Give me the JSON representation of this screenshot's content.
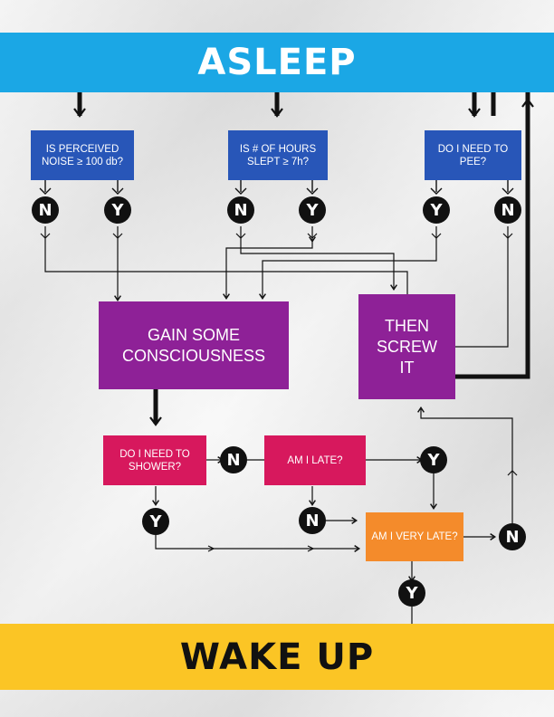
{
  "header": {
    "title": "ASLEEP"
  },
  "footer": {
    "title": "WAKE UP"
  },
  "questions": {
    "noise": "IS PERCEIVED NOISE ≥ 100 db?",
    "sleep_hours": "IS # OF HOURS SLEPT ≥ 7h?",
    "pee": "DO I NEED TO PEE?",
    "shower": "DO I NEED TO SHOWER?",
    "late": "AM I LATE?",
    "very_late": "AM I VERY LATE?"
  },
  "actions": {
    "gain_consciousness": "GAIN SOME CONSCIOUSNESS",
    "screw_it": "THEN SCREW IT"
  },
  "answers": {
    "yes": "Y",
    "no": "N"
  },
  "colors": {
    "header_blue": "#1ba7e5",
    "question_blue": "#2856b8",
    "action_purple": "#8e2197",
    "question_pink": "#d7185d",
    "question_orange": "#f48b2b",
    "footer_yellow": "#fbc525",
    "answer_black": "#111111"
  }
}
